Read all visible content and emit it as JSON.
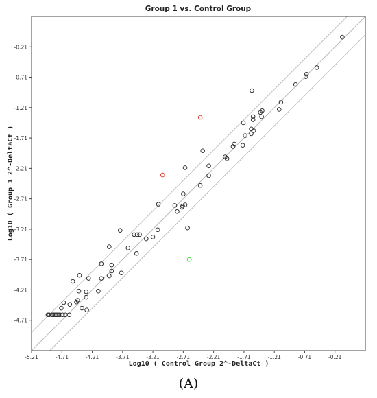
{
  "chart_data": {
    "type": "scatter",
    "title": "Group 1 vs. Control Group",
    "xlabel": "Log10 ( Control Group 2^-DeltaCt )",
    "ylabel": "Log10 ( Group 1 2^-DeltaCt )",
    "xlim": [
      -5.21,
      0.29
    ],
    "ylim": [
      -5.21,
      0.29
    ],
    "xticks": [
      -5.21,
      -4.71,
      -4.21,
      -3.71,
      -3.21,
      -2.71,
      -2.21,
      -1.71,
      -1.21,
      -0.71,
      -0.21
    ],
    "yticks": [
      -0.21,
      -0.71,
      -1.21,
      -1.71,
      -2.21,
      -2.71,
      -3.21,
      -3.71,
      -4.21,
      -4.71
    ],
    "reference_lines": [
      {
        "name": "upper boundary",
        "intercept": 0.301
      },
      {
        "name": "equality",
        "intercept": 0
      },
      {
        "name": "lower boundary",
        "intercept": -0.301
      }
    ],
    "colors": {
      "default": "#333333",
      "up": "#e83a2e",
      "down": "#3ddc3a",
      "guide": "#bbbbbb",
      "frame": "#444444"
    },
    "series": [
      {
        "status": "unchanged",
        "points": [
          [
            -0.09,
            -0.05
          ],
          [
            -0.51,
            -0.55
          ],
          [
            -0.68,
            -0.66
          ],
          [
            -0.69,
            -0.7
          ],
          [
            -0.86,
            -0.83
          ],
          [
            -1.1,
            -1.12
          ],
          [
            -1.13,
            -1.24
          ],
          [
            -1.41,
            -1.26
          ],
          [
            -1.44,
            -1.29
          ],
          [
            -1.42,
            -1.36
          ],
          [
            -1.56,
            -1.36
          ],
          [
            -1.56,
            -1.41
          ],
          [
            -1.59,
            -1.56
          ],
          [
            -1.55,
            -1.59
          ],
          [
            -1.59,
            -1.64
          ],
          [
            -1.72,
            -1.46
          ],
          [
            -1.69,
            -1.67
          ],
          [
            -1.73,
            -1.83
          ],
          [
            -1.87,
            -1.81
          ],
          [
            -1.89,
            -1.85
          ],
          [
            -1.58,
            -0.93
          ],
          [
            -1.99,
            -2.05
          ],
          [
            -2.02,
            -2.02
          ],
          [
            -2.29,
            -2.17
          ],
          [
            -2.29,
            -2.33
          ],
          [
            -2.39,
            -1.92
          ],
          [
            -2.43,
            -2.49
          ],
          [
            -2.68,
            -2.2
          ],
          [
            -2.71,
            -2.63
          ],
          [
            -2.72,
            -2.83
          ],
          [
            -2.68,
            -2.81
          ],
          [
            -2.73,
            -2.85
          ],
          [
            -2.81,
            -2.92
          ],
          [
            -2.85,
            -2.82
          ],
          [
            -2.64,
            -3.19
          ],
          [
            -3.12,
            -2.8
          ],
          [
            -3.13,
            -3.22
          ],
          [
            -3.21,
            -3.34
          ],
          [
            -3.32,
            -3.37
          ],
          [
            -3.43,
            -3.3
          ],
          [
            -3.47,
            -3.3
          ],
          [
            -3.52,
            -3.3
          ],
          [
            -3.48,
            -3.61
          ],
          [
            -3.62,
            -3.52
          ],
          [
            -3.75,
            -3.23
          ],
          [
            -3.73,
            -3.93
          ],
          [
            -3.89,
            -3.8
          ],
          [
            -3.89,
            -3.9
          ],
          [
            -3.93,
            -3.98
          ],
          [
            -3.93,
            -3.5
          ],
          [
            -4.06,
            -3.78
          ],
          [
            -4.06,
            -4.02
          ],
          [
            -4.11,
            -4.23
          ],
          [
            -4.27,
            -4.02
          ],
          [
            -4.3,
            -4.54
          ],
          [
            -4.31,
            -4.24
          ],
          [
            -4.31,
            -4.33
          ],
          [
            -4.38,
            -4.51
          ],
          [
            -4.42,
            -3.97
          ],
          [
            -4.43,
            -4.23
          ],
          [
            -4.45,
            -4.38
          ],
          [
            -4.47,
            -4.41
          ],
          [
            -4.53,
            -4.07
          ],
          [
            -4.58,
            -4.45
          ],
          [
            -4.59,
            -4.62
          ],
          [
            -4.65,
            -4.62
          ],
          [
            -4.68,
            -4.42
          ],
          [
            -4.72,
            -4.51
          ],
          [
            -4.7,
            -4.62
          ],
          [
            -4.74,
            -4.62
          ],
          [
            -4.76,
            -4.62
          ],
          [
            -4.78,
            -4.62
          ],
          [
            -4.8,
            -4.62
          ],
          [
            -4.82,
            -4.62
          ],
          [
            -4.84,
            -4.62
          ],
          [
            -4.86,
            -4.62
          ],
          [
            -4.87,
            -4.62
          ],
          [
            -4.92,
            -4.62
          ],
          [
            -4.93,
            -4.62
          ],
          [
            -4.94,
            -4.62
          ]
        ]
      },
      {
        "status": "up-regulated",
        "points": [
          [
            -2.43,
            -1.37
          ],
          [
            -3.05,
            -2.32
          ]
        ]
      },
      {
        "status": "down-regulated",
        "points": [
          [
            -2.61,
            -3.71
          ]
        ]
      }
    ]
  },
  "caption": "(A)"
}
